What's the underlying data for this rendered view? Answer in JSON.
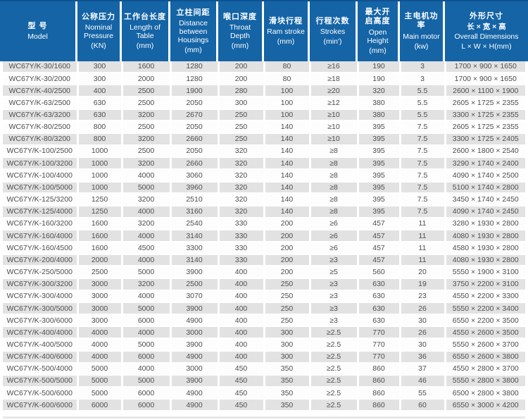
{
  "table": {
    "title": "WC67Y/K press brake specification table",
    "colors": {
      "header_bg": "#1464a6",
      "header_top_border": "#0f528f",
      "header_text": "#ffffff",
      "row_stripe": "#e2e2e2",
      "row_plain": "#fdfdfd",
      "cell_text": "#4d4d4d"
    },
    "columns": [
      {
        "zh": "型 号",
        "en": "Model",
        "unit": ""
      },
      {
        "zh": "公称压力",
        "en": "Nominal Pressure",
        "unit": "(KN)"
      },
      {
        "zh": "工作台长度",
        "en": "Length of Table",
        "unit": "(mm)"
      },
      {
        "zh": "立柱间距",
        "en": "Distance between Housings",
        "unit": "(mm)"
      },
      {
        "zh": "喉口深度",
        "en": "Throat Depth",
        "unit": "(mm)"
      },
      {
        "zh": "滑块行程",
        "en": "Ram stroke",
        "unit": "(mm)"
      },
      {
        "zh": "行程次数",
        "en": "Strokes",
        "unit": "(min')"
      },
      {
        "zh": "最大开\n启高度",
        "en": "Open Height",
        "unit": "(mm)"
      },
      {
        "zh": "主电机功率",
        "en": "Main motor",
        "unit": "(kw)"
      },
      {
        "zh": "外形尺寸",
        "zh2": "长 × 宽 × 高",
        "en": "Overall Dimensions",
        "unit": "L × W × H(mm)"
      }
    ],
    "rows": [
      [
        "WC67Y/K-30/1600",
        "300",
        "1600",
        "1280",
        "200",
        "80",
        "≥16",
        "190",
        "3",
        "1700 × 900 × 1650"
      ],
      [
        "WC67Y/K-30/2000",
        "300",
        "2000",
        "1280",
        "200",
        "80",
        "≥18",
        "190",
        "3",
        "1700 × 900 × 1650"
      ],
      [
        "WC67Y/K-40/2500",
        "400",
        "2500",
        "1900",
        "280",
        "100",
        "≥20",
        "320",
        "5.5",
        "2600 × 1100 × 1900"
      ],
      [
        "WC67Y/K-63/2500",
        "630",
        "2500",
        "2050",
        "300",
        "100",
        "≥12",
        "380",
        "5.5",
        "2605 × 1725 × 2355"
      ],
      [
        "WC67Y/K-63/3200",
        "630",
        "3200",
        "2670",
        "250",
        "100",
        "≥10",
        "380",
        "5.5",
        "3300 × 1725 × 2355"
      ],
      [
        "WC67Y/K-80/2500",
        "800",
        "2500",
        "2050",
        "250",
        "140",
        "≥10",
        "395",
        "7.5",
        "2605 × 1725 × 2355"
      ],
      [
        "WC67Y/K-80/3200",
        "800",
        "3200",
        "2660",
        "250",
        "140",
        "≥10",
        "395",
        "7.5",
        "3300 × 1725 × 2405"
      ],
      [
        "WC67Y/K-100/2500",
        "1000",
        "2500",
        "2050",
        "320",
        "140",
        "≥8",
        "395",
        "7.5",
        "2600 × 1800 × 2540"
      ],
      [
        "WC67Y/K-100/3200",
        "1000",
        "3200",
        "2660",
        "320",
        "140",
        "≥8",
        "395",
        "7.5",
        "3290 × 1740 × 2400"
      ],
      [
        "WC67Y/K-100/4000",
        "1000",
        "4000",
        "3060",
        "320",
        "140",
        "≥8",
        "395",
        "7.5",
        "4090 × 1740 × 2500"
      ],
      [
        "WC67Y/K-100/5000",
        "1000",
        "5000",
        "3960",
        "320",
        "140",
        "≥8",
        "395",
        "7.5",
        "5100 × 1740 × 2800"
      ],
      [
        "WC67Y/K-125/3200",
        "1250",
        "3200",
        "2510",
        "320",
        "140",
        "≥8",
        "395",
        "7.5",
        "3450 × 1740 × 2450"
      ],
      [
        "WC67Y/K-125/4000",
        "1250",
        "4000",
        "3160",
        "320",
        "140",
        "≥8",
        "395",
        "7.5",
        "4090 × 1740 × 2450"
      ],
      [
        "WC67Y/K-160/3200",
        "1600",
        "3200",
        "2540",
        "330",
        "200",
        "≥6",
        "457",
        "11",
        "3280 × 1930 × 2800"
      ],
      [
        "WC67Y/K-160/4000",
        "1600",
        "4000",
        "3140",
        "330",
        "200",
        "≥6",
        "457",
        "11",
        "4080 × 1930 × 2800"
      ],
      [
        "WC67Y/K-160/4500",
        "1600",
        "4500",
        "3300",
        "330",
        "200",
        "≥6",
        "457",
        "11",
        "4580 × 1930 × 2800"
      ],
      [
        "WC67Y/K-200/4000",
        "2000",
        "4000",
        "3140",
        "330",
        "200",
        "≥3",
        "457",
        "11",
        "4080 × 1930 × 2800"
      ],
      [
        "WC67Y/K-250/5000",
        "2500",
        "5000",
        "3900",
        "400",
        "200",
        "≥5",
        "560",
        "20",
        "5550 × 1900 × 3100"
      ],
      [
        "WC67Y/K-300/3200",
        "3000",
        "3200",
        "2500",
        "400",
        "250",
        "≥3",
        "630",
        "19",
        "3750 × 2200 × 3100"
      ],
      [
        "WC67Y/K-300/4000",
        "3000",
        "4000",
        "3070",
        "400",
        "250",
        "≥3",
        "630",
        "23",
        "4550 × 2200 × 3300"
      ],
      [
        "WC67Y/K-300/5000",
        "3000",
        "5000",
        "3900",
        "400",
        "250",
        "≥3",
        "630",
        "26",
        "5550 × 2200 × 3400"
      ],
      [
        "WC67Y/K-300/6000",
        "3000",
        "6000",
        "4900",
        "400",
        "250",
        "≥3",
        "630",
        "30",
        "6550 × 2200 × 3500"
      ],
      [
        "WC67Y/K-400/4000",
        "4000",
        "4000",
        "3000",
        "400",
        "300",
        "≥2.5",
        "770",
        "26",
        "4550 × 2600 × 3500"
      ],
      [
        "WC67Y/K-400/5000",
        "4000",
        "5000",
        "3900",
        "400",
        "300",
        "≥2.5",
        "770",
        "30",
        "5550 × 2600 × 3700"
      ],
      [
        "WC67Y/K-400/6000",
        "4000",
        "6000",
        "4900",
        "400",
        "300",
        "≥2.5",
        "770",
        "36",
        "6550 × 2600 × 3800"
      ],
      [
        "WC67Y/K-500/4000",
        "5000",
        "4000",
        "3000",
        "450",
        "350",
        "≥2.5",
        "860",
        "37",
        "4550 × 2800 × 3700"
      ],
      [
        "WC67Y/K-500/5000",
        "5000",
        "5000",
        "3900",
        "450",
        "350",
        "≥2.5",
        "860",
        "46",
        "5550 × 2800 × 3800"
      ],
      [
        "WC67Y/K-500/6000",
        "5000",
        "6000",
        "4900",
        "450",
        "350",
        "≥2.5",
        "860",
        "55",
        "6500 × 2800 × 3800"
      ],
      [
        "WC67Y/K-600/6000",
        "6000",
        "6000",
        "4900",
        "450",
        "350",
        "≥2.5",
        "860",
        "60",
        "6550 × 3000 × 4200"
      ]
    ]
  }
}
